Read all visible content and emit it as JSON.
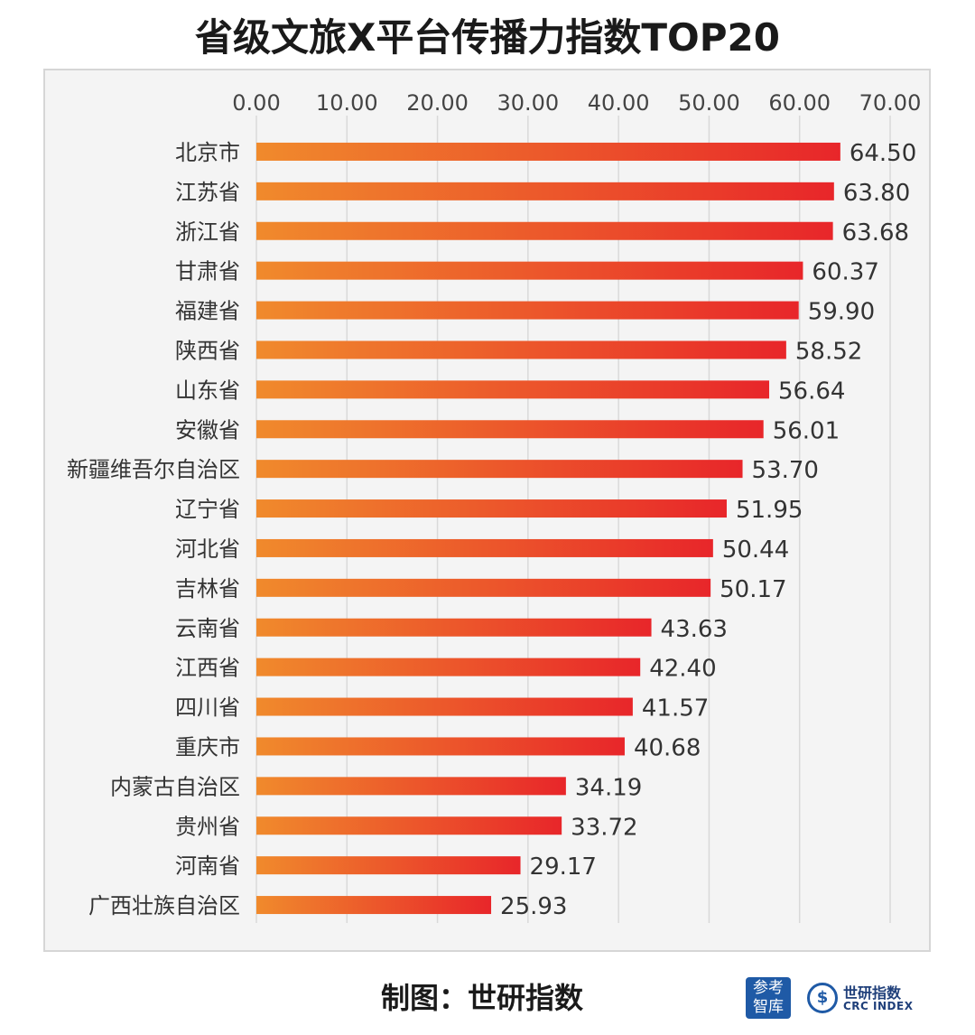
{
  "title": "省级文旅X平台传播力指数TOP20",
  "footer": "制图：世研指数",
  "logos": {
    "left_badge": "参考智库",
    "right_brand_cn": "世研指数",
    "right_brand_en": "CRC INDEX"
  },
  "colors": {
    "bar_start": "#f08a2c",
    "bar_end": "#e8262a",
    "panel_bg": "#f4f4f4",
    "grid": "#d9d9d9",
    "text": "#333333"
  },
  "chart_data": {
    "type": "bar",
    "orientation": "horizontal",
    "title": "省级文旅X平台传播力指数TOP20",
    "xlim": [
      0,
      70
    ],
    "ticks": [
      "0.00",
      "10.00",
      "20.00",
      "30.00",
      "40.00",
      "50.00",
      "60.00",
      "70.00"
    ],
    "tick_values": [
      0,
      10,
      20,
      30,
      40,
      50,
      60,
      70
    ],
    "axis_position": "top",
    "grid": true,
    "categories": [
      "北京市",
      "江苏省",
      "浙江省",
      "甘肃省",
      "福建省",
      "陕西省",
      "山东省",
      "安徽省",
      "新疆维吾尔自治区",
      "辽宁省",
      "河北省",
      "吉林省",
      "云南省",
      "江西省",
      "四川省",
      "重庆市",
      "内蒙古自治区",
      "贵州省",
      "河南省",
      "广西壮族自治区"
    ],
    "values": [
      64.5,
      63.8,
      63.68,
      60.37,
      59.9,
      58.52,
      56.64,
      56.01,
      53.7,
      51.95,
      50.44,
      50.17,
      43.63,
      42.4,
      41.57,
      40.68,
      34.19,
      33.72,
      29.17,
      25.93
    ],
    "value_labels": [
      "64.50",
      "63.80",
      "63.68",
      "60.37",
      "59.90",
      "58.52",
      "56.64",
      "56.01",
      "53.70",
      "51.95",
      "50.44",
      "50.17",
      "43.63",
      "42.40",
      "41.57",
      "40.68",
      "34.19",
      "33.72",
      "29.17",
      "25.93"
    ]
  }
}
